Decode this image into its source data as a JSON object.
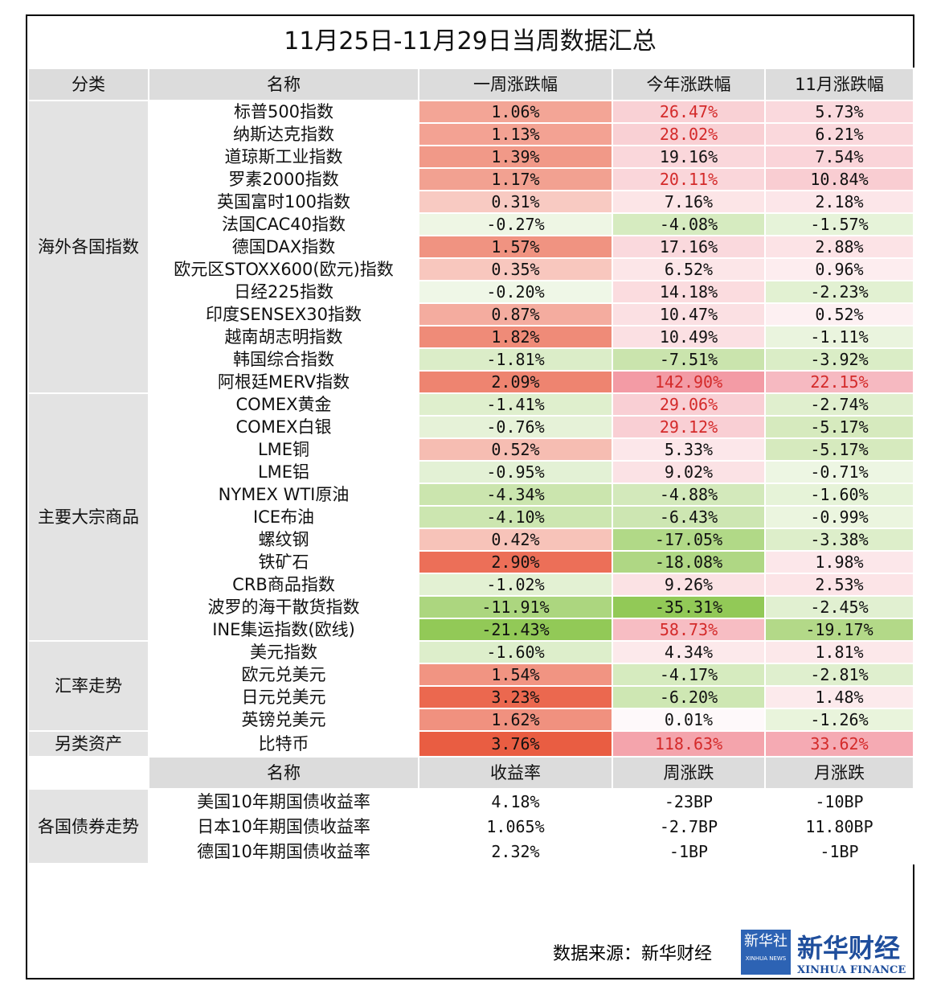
{
  "title": "11月25日-11月29日当周数据汇总",
  "table": {
    "headers": [
      "分类",
      "名称",
      "一周涨跌幅",
      "今年涨跌幅",
      "11月涨跌幅"
    ],
    "groups": [
      {
        "label": "海外各国指数",
        "rows": [
          [
            "标普500指数",
            "1.06%",
            "26.47%",
            "5.73%"
          ],
          [
            "纳斯达克指数",
            "1.13%",
            "28.02%",
            "6.21%"
          ],
          [
            "道琼斯工业指数",
            "1.39%",
            "19.16%",
            "7.54%"
          ],
          [
            "罗素2000指数",
            "1.17%",
            "20.11%",
            "10.84%"
          ],
          [
            "英国富时100指数",
            "0.31%",
            "7.16%",
            "2.18%"
          ],
          [
            "法国CAC40指数",
            "-0.27%",
            "-4.08%",
            "-1.57%"
          ],
          [
            "德国DAX指数",
            "1.57%",
            "17.16%",
            "2.88%"
          ],
          [
            "欧元区STOXX600(欧元)指数",
            "0.35%",
            "6.52%",
            "0.96%"
          ],
          [
            "日经225指数",
            "-0.20%",
            "14.18%",
            "-2.23%"
          ],
          [
            "印度SENSEX30指数",
            "0.87%",
            "10.47%",
            "0.52%"
          ],
          [
            "越南胡志明指数",
            "1.82%",
            "10.49%",
            "-1.11%"
          ],
          [
            "韩国综合指数",
            "-1.81%",
            "-7.51%",
            "-3.92%"
          ],
          [
            "阿根廷MERV指数",
            "2.09%",
            "142.90%",
            "22.15%"
          ]
        ]
      },
      {
        "label": "主要大宗商品",
        "rows": [
          [
            "COMEX黄金",
            "-1.41%",
            "29.06%",
            "-2.74%"
          ],
          [
            "COMEX白银",
            "-0.76%",
            "29.12%",
            "-5.17%"
          ],
          [
            "LME铜",
            "0.52%",
            "5.33%",
            "-5.17%"
          ],
          [
            "LME铝",
            "-0.95%",
            "9.02%",
            "-0.71%"
          ],
          [
            "NYMEX WTI原油",
            "-4.34%",
            "-4.88%",
            "-1.60%"
          ],
          [
            "ICE布油",
            "-4.10%",
            "-6.43%",
            "-0.99%"
          ],
          [
            "螺纹钢",
            "0.42%",
            "-17.05%",
            "-3.38%"
          ],
          [
            "铁矿石",
            "2.90%",
            "-18.08%",
            "1.98%"
          ],
          [
            "CRB商品指数",
            "-1.02%",
            "9.26%",
            "2.53%"
          ],
          [
            "波罗的海干散货指数",
            "-11.91%",
            "-35.31%",
            "-2.45%"
          ],
          [
            "INE集运指数(欧线)",
            "-21.43%",
            "58.73%",
            "-19.17%"
          ]
        ]
      },
      {
        "label": "汇率走势",
        "rows": [
          [
            "美元指数",
            "-1.60%",
            "4.34%",
            "1.81%"
          ],
          [
            "欧元兑美元",
            "1.54%",
            "-4.17%",
            "-2.81%"
          ],
          [
            "日元兑美元",
            "3.23%",
            "-6.20%",
            "1.48%"
          ],
          [
            "英镑兑美元",
            "1.62%",
            "0.01%",
            "-1.26%"
          ]
        ]
      },
      {
        "label": "另类资产",
        "rows": [
          [
            "比特币",
            "3.76%",
            "118.63%",
            "33.62%"
          ]
        ]
      }
    ]
  },
  "bonds": {
    "headers": [
      "名称",
      "收益率",
      "周涨跌",
      "月涨跌"
    ],
    "label": "各国债券走势",
    "rows": [
      [
        "美国10年期国债收益率",
        "4.18%",
        "-23BP",
        "-10BP"
      ],
      [
        "日本10年期国债收益率",
        "1.065%",
        "-2.7BP",
        "11.80BP"
      ],
      [
        "德国10年期国债收益率",
        "2.32%",
        "-1BP",
        "-1BP"
      ]
    ]
  },
  "footer": {
    "source": "数据来源：新华财经",
    "logo_mark": "新华社",
    "logo_mark_en": "XINHUA NEWS",
    "logo_name": "新华财经",
    "logo_name_en": "XINHUA FINANCE"
  }
}
